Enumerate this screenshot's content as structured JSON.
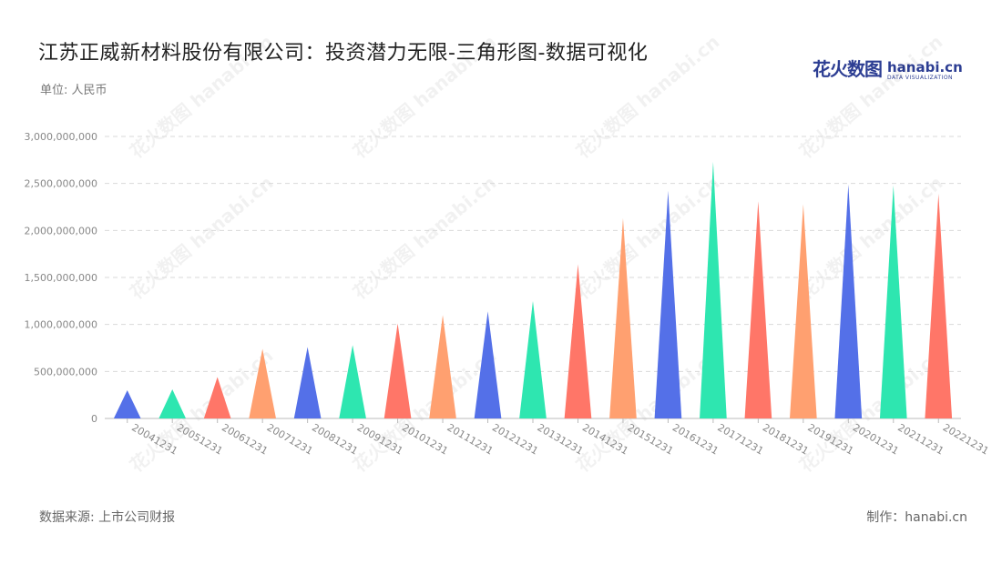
{
  "title": "江苏正威新材料股份有限公司：投资潜力无限-三角形图-数据可视化",
  "unit_label": "单位: 人民币",
  "logo": {
    "text_cn": "花火数图",
    "text_en": "hanabi.cn",
    "subtext": "DATA VISUALIZATION"
  },
  "watermark": "花火数图 hanabi.cn",
  "footer": {
    "source": "数据来源: 上市公司财报",
    "maker": "制作：hanabi.cn"
  },
  "colors": [
    "#5470e8",
    "#2ee6b0",
    "#ff7668",
    "#ffa070"
  ],
  "chart_data": {
    "type": "bar",
    "shape": "triangle",
    "categories": [
      "20041231",
      "20051231",
      "20061231",
      "20071231",
      "20081231",
      "20091231",
      "20101231",
      "20111231",
      "20121231",
      "20131231",
      "20141231",
      "20151231",
      "20161231",
      "20171231",
      "20181231",
      "20191231",
      "20201231",
      "20211231",
      "20221231"
    ],
    "values": [
      300000000,
      310000000,
      440000000,
      740000000,
      760000000,
      780000000,
      1010000000,
      1100000000,
      1140000000,
      1250000000,
      1640000000,
      2130000000,
      2420000000,
      2730000000,
      2310000000,
      2280000000,
      2490000000,
      2480000000,
      2390000000
    ],
    "yticks": [
      "0",
      "500,000,000",
      "1,000,000,000",
      "1,500,000,000",
      "2,000,000,000",
      "2,500,000,000",
      "3,000,000,000"
    ],
    "ylim": [
      0,
      3000000000
    ],
    "grid": true,
    "legend": "none"
  }
}
